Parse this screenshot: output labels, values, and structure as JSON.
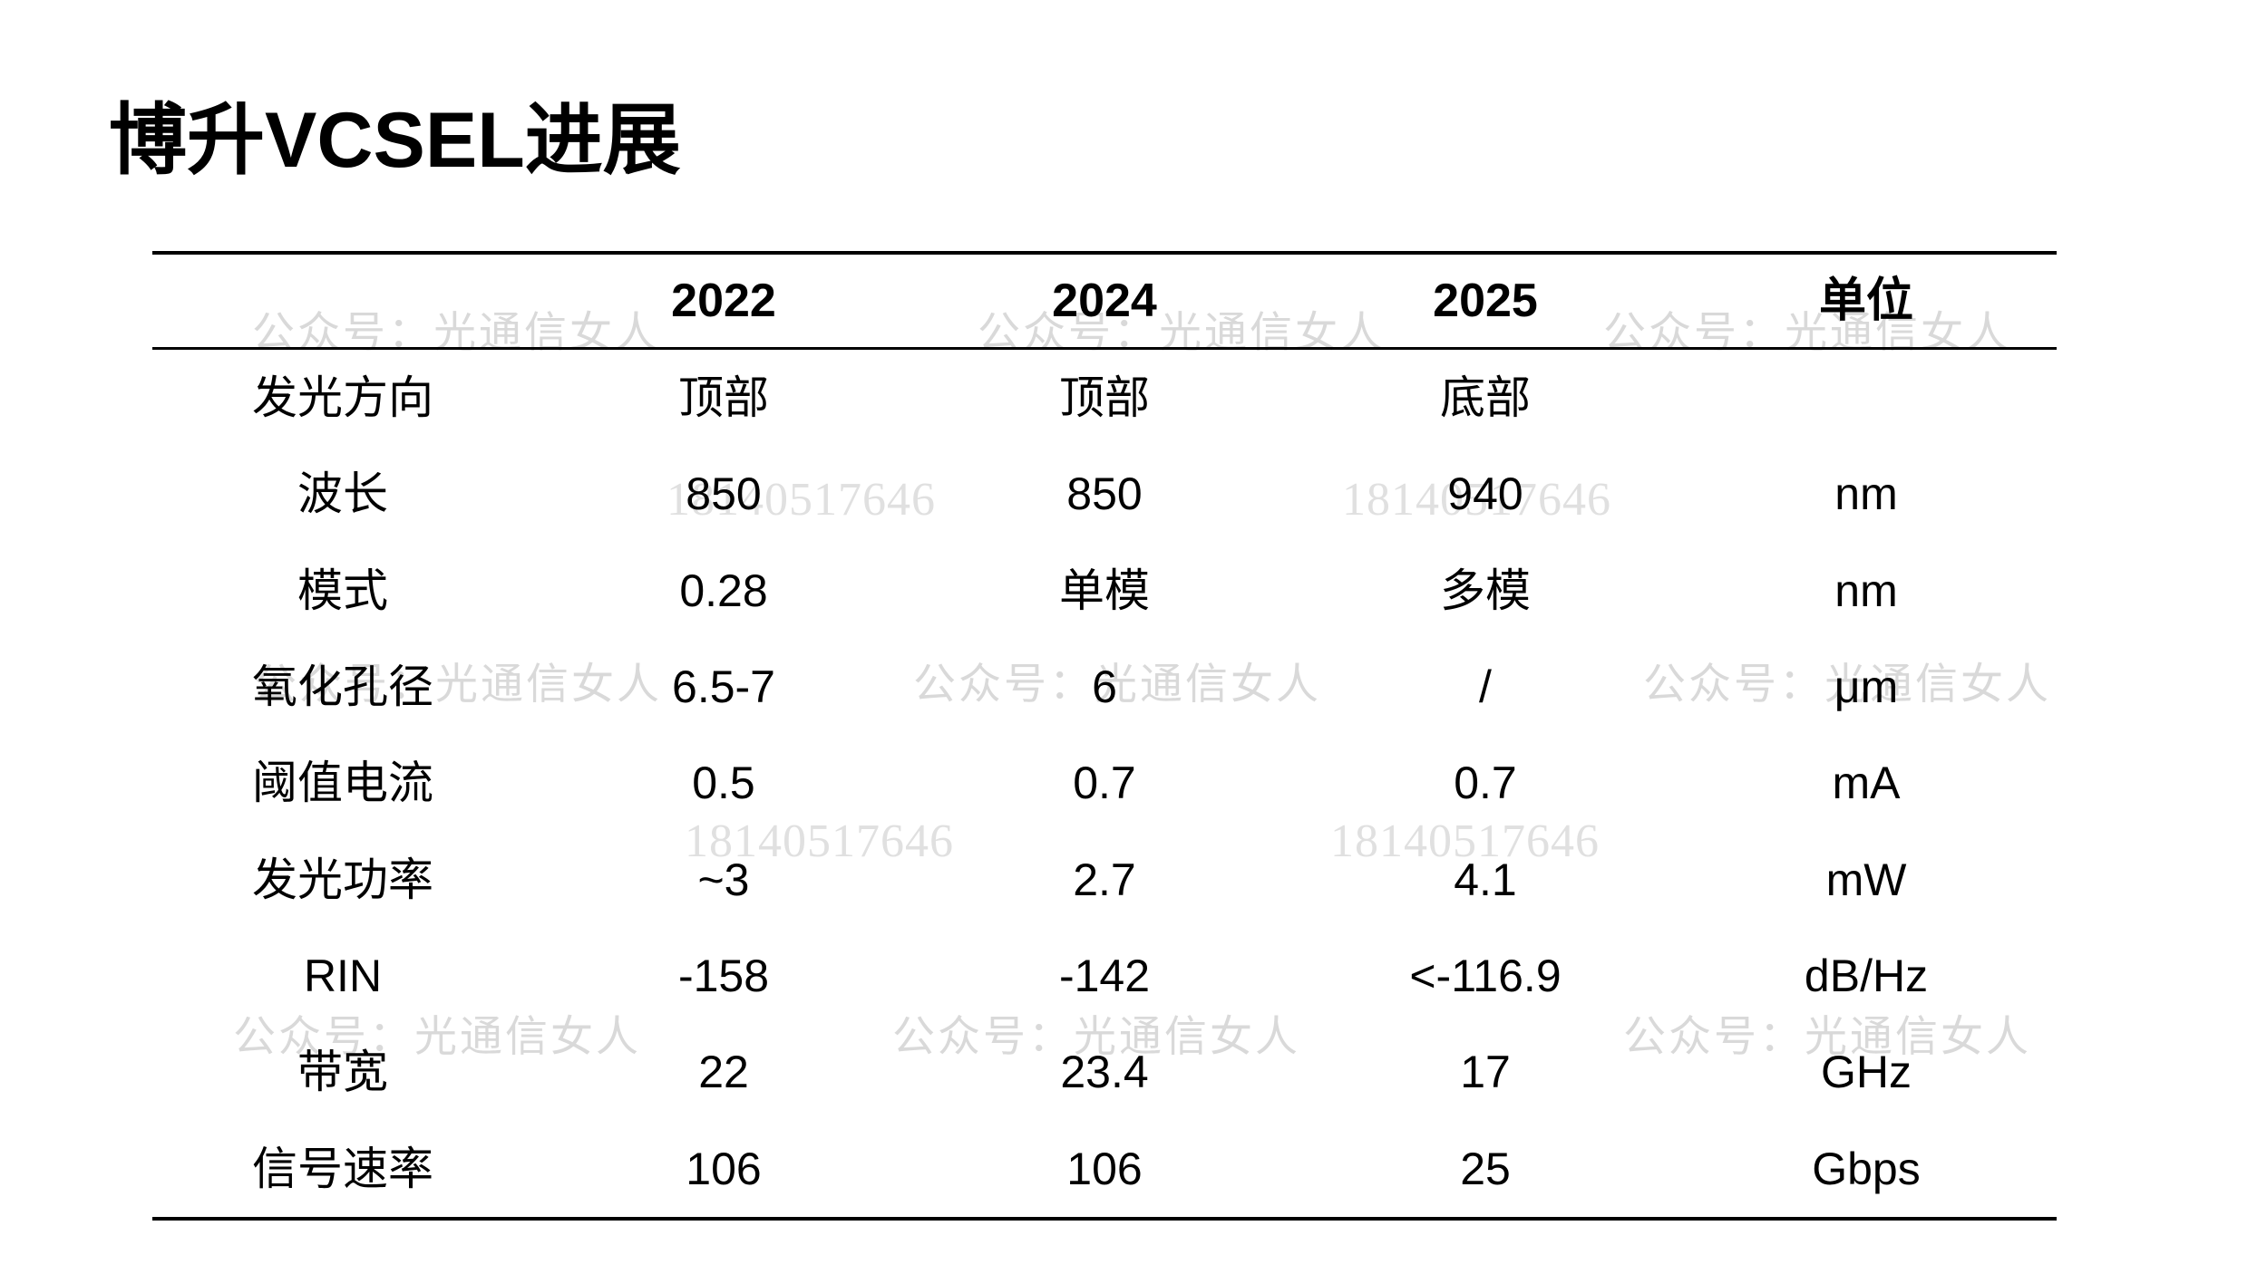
{
  "title": "博升VCSEL进展",
  "table": {
    "headers": [
      "",
      "2022",
      "2024",
      "2025",
      "单位"
    ],
    "rows": [
      {
        "label": "发光方向",
        "y2022": "顶部",
        "y2024": "顶部",
        "y2025": "底部",
        "unit": ""
      },
      {
        "label": "波长",
        "y2022": "850",
        "y2024": "850",
        "y2025": "940",
        "unit": "nm"
      },
      {
        "label": "模式",
        "y2022": "0.28",
        "y2024": "单模",
        "y2025": "多模",
        "unit": "nm"
      },
      {
        "label": "氧化孔径",
        "y2022": "6.5-7",
        "y2024": "6",
        "y2025": "/",
        "unit": "μm"
      },
      {
        "label": "阈值电流",
        "y2022": "0.5",
        "y2024": "0.7",
        "y2025": "0.7",
        "unit": "mA"
      },
      {
        "label": "发光功率",
        "y2022": "~3",
        "y2024": "2.7",
        "y2025": "4.1",
        "unit": "mW"
      },
      {
        "label": "RIN",
        "y2022": "-158",
        "y2024": "-142",
        "y2025": "<-116.9",
        "unit": "dB/Hz"
      },
      {
        "label": "带宽",
        "y2022": "22",
        "y2024": "23.4",
        "y2025": "17",
        "unit": "GHz"
      },
      {
        "label": "信号速率",
        "y2022": "106",
        "y2024": "106",
        "y2025": "25",
        "unit": "Gbps"
      }
    ]
  },
  "watermarks": {
    "account": "公众号：光通信女人",
    "phone": "18140517646"
  },
  "colors": {
    "background": "#ffffff",
    "text": "#000000",
    "line": "#000000",
    "watermark_account": "#d9d9d9",
    "watermark_phone": "#e0e0e0"
  }
}
